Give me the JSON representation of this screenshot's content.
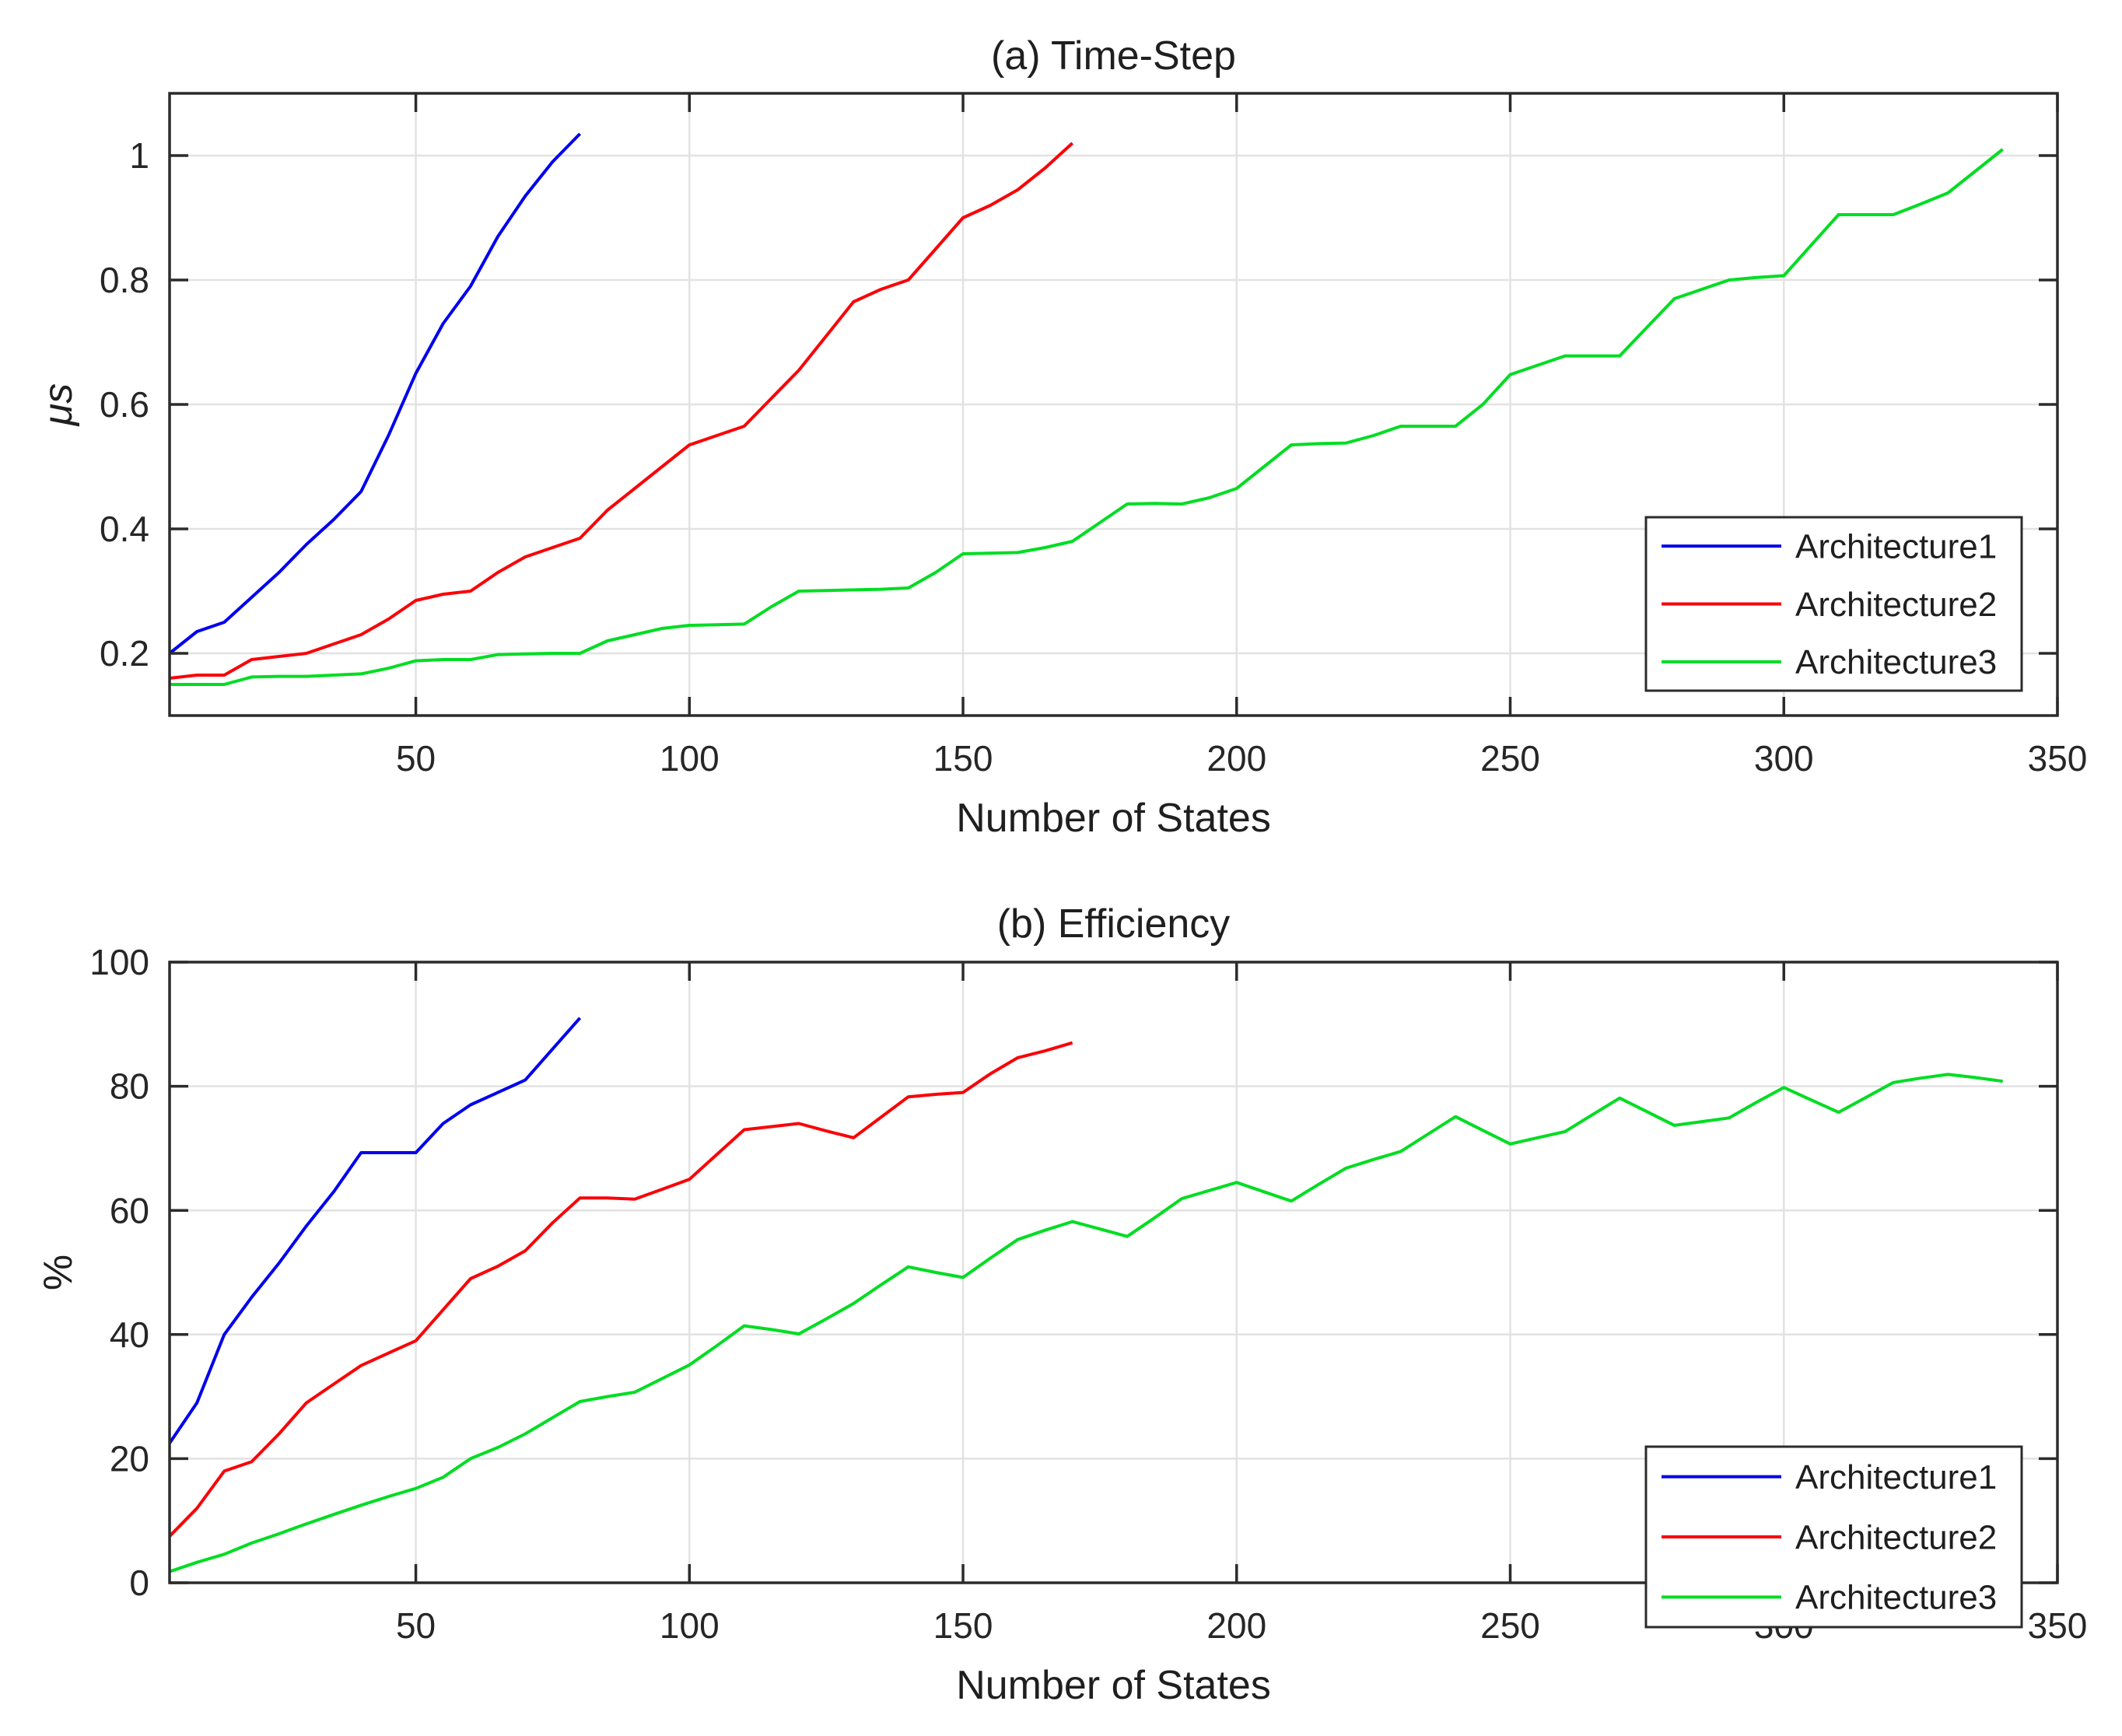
{
  "figure": {
    "background": "#ffffff",
    "text_color": "#1f1f1f",
    "axis_color": "#2b2b2b",
    "grid_color": "#e2e2e2",
    "series_colors": {
      "blue": "#0000ee",
      "red": "#fb0207",
      "green": "#00dd22"
    }
  },
  "chart_data": [
    {
      "type": "line",
      "title": "(a) Time-Step",
      "xlabel": "Number of States",
      "ylabel": "μs",
      "xlim": [
        5,
        350
      ],
      "ylim": [
        0.1,
        1.1
      ],
      "grid": true,
      "x_ticks": [
        50,
        100,
        150,
        200,
        250,
        300,
        350
      ],
      "x_tick_labels": [
        "50",
        "100",
        "150",
        "200",
        "250",
        "300",
        "350"
      ],
      "y_ticks": [
        0.2,
        0.4,
        0.6,
        0.8,
        1
      ],
      "y_tick_labels": [
        "0.2",
        "0.4",
        "0.6",
        "0.8",
        "1"
      ],
      "legend_position": "right-middle",
      "series": [
        {
          "name": "Architecture1",
          "color": "#0000ee",
          "x": [
            5,
            10,
            15,
            20,
            25,
            30,
            35,
            40,
            45,
            50,
            55,
            60,
            65,
            70,
            75,
            80
          ],
          "y": [
            0.2,
            0.235,
            0.25,
            0.29,
            0.33,
            0.375,
            0.415,
            0.46,
            0.55,
            0.65,
            0.73,
            0.79,
            0.87,
            0.935,
            0.99,
            1.035
          ]
        },
        {
          "name": "Architecture2",
          "color": "#fb0207",
          "x": [
            5,
            10,
            15,
            20,
            25,
            30,
            35,
            40,
            45,
            50,
            55,
            60,
            65,
            70,
            75,
            80,
            85,
            90,
            95,
            100,
            105,
            110,
            115,
            120,
            125,
            130,
            135,
            140,
            145,
            150,
            155,
            160,
            165,
            170
          ],
          "y": [
            0.16,
            0.165,
            0.165,
            0.19,
            0.195,
            0.2,
            0.215,
            0.23,
            0.255,
            0.285,
            0.295,
            0.3,
            0.33,
            0.355,
            0.37,
            0.385,
            0.43,
            0.465,
            0.5,
            0.535,
            0.55,
            0.565,
            0.61,
            0.655,
            0.71,
            0.765,
            0.785,
            0.8,
            0.85,
            0.9,
            0.92,
            0.945,
            0.98,
            1.02
          ]
        },
        {
          "name": "Architecture3",
          "color": "#00dd22",
          "x": [
            5,
            10,
            15,
            20,
            25,
            30,
            35,
            40,
            45,
            50,
            55,
            60,
            65,
            70,
            75,
            80,
            85,
            90,
            95,
            100,
            105,
            110,
            115,
            120,
            125,
            130,
            135,
            140,
            145,
            150,
            155,
            160,
            165,
            170,
            175,
            180,
            185,
            190,
            195,
            200,
            205,
            210,
            215,
            220,
            225,
            230,
            235,
            240,
            245,
            250,
            255,
            260,
            265,
            270,
            275,
            280,
            285,
            290,
            295,
            300,
            305,
            310,
            315,
            320,
            325,
            330,
            335,
            340
          ],
          "y": [
            0.15,
            0.15,
            0.15,
            0.162,
            0.163,
            0.163,
            0.165,
            0.167,
            0.176,
            0.188,
            0.19,
            0.19,
            0.198,
            0.199,
            0.2,
            0.2,
            0.22,
            0.23,
            0.24,
            0.245,
            0.246,
            0.247,
            0.275,
            0.3,
            0.301,
            0.302,
            0.303,
            0.305,
            0.33,
            0.36,
            0.361,
            0.362,
            0.37,
            0.38,
            0.41,
            0.44,
            0.441,
            0.44,
            0.45,
            0.465,
            0.5,
            0.535,
            0.537,
            0.538,
            0.55,
            0.565,
            0.565,
            0.565,
            0.6,
            0.648,
            0.663,
            0.678,
            0.678,
            0.678,
            0.724,
            0.77,
            0.785,
            0.8,
            0.804,
            0.807,
            0.856,
            0.905,
            0.905,
            0.905,
            0.922,
            0.94,
            0.975,
            1.01
          ]
        }
      ]
    },
    {
      "type": "line",
      "title": "(b) Efficiency",
      "xlabel": "Number of States",
      "ylabel": "%",
      "xlim": [
        5,
        350
      ],
      "ylim": [
        0,
        100
      ],
      "grid": true,
      "x_ticks": [
        50,
        100,
        150,
        200,
        250,
        300,
        350
      ],
      "x_tick_labels": [
        "50",
        "100",
        "150",
        "200",
        "250",
        "300",
        "350"
      ],
      "y_ticks": [
        0,
        20,
        40,
        60,
        80,
        100
      ],
      "y_tick_labels": [
        "0",
        "20",
        "40",
        "60",
        "80",
        "100"
      ],
      "legend_position": "right-middle",
      "series": [
        {
          "name": "Architecture1",
          "color": "#0000ee",
          "x": [
            5,
            10,
            15,
            20,
            25,
            30,
            35,
            40,
            45,
            50,
            55,
            60,
            65,
            70,
            75,
            80
          ],
          "y": [
            22.5,
            29,
            40,
            46,
            51.5,
            57.5,
            63,
            69.3,
            69.3,
            69.3,
            74,
            77,
            79,
            81,
            86,
            91
          ]
        },
        {
          "name": "Architecture2",
          "color": "#fb0207",
          "x": [
            5,
            10,
            15,
            20,
            25,
            30,
            35,
            40,
            45,
            50,
            55,
            60,
            65,
            70,
            75,
            80,
            85,
            90,
            95,
            100,
            105,
            110,
            115,
            120,
            125,
            130,
            135,
            140,
            145,
            150,
            155,
            160,
            165,
            170
          ],
          "y": [
            7.5,
            12,
            18,
            19.5,
            24,
            29,
            32,
            35,
            37,
            39,
            44,
            49,
            51,
            53.5,
            58,
            62,
            62,
            61.8,
            63.4,
            65,
            69,
            73,
            73.5,
            74,
            72.8,
            71.7,
            75,
            78.3,
            78.7,
            79,
            82,
            84.6,
            85.7,
            87
          ]
        },
        {
          "name": "Architecture3",
          "color": "#00dd22",
          "x": [
            5,
            10,
            15,
            20,
            25,
            30,
            35,
            40,
            45,
            50,
            55,
            60,
            65,
            70,
            75,
            80,
            85,
            90,
            95,
            100,
            105,
            110,
            115,
            120,
            125,
            130,
            135,
            140,
            145,
            150,
            155,
            160,
            165,
            170,
            175,
            180,
            185,
            190,
            195,
            200,
            205,
            210,
            215,
            220,
            225,
            230,
            235,
            240,
            245,
            250,
            255,
            260,
            265,
            270,
            275,
            280,
            285,
            290,
            295,
            300,
            305,
            310,
            315,
            320,
            325,
            330,
            335,
            340
          ],
          "y": [
            1.8,
            3.3,
            4.6,
            6.4,
            7.9,
            9.5,
            11,
            12.5,
            13.9,
            15.2,
            17,
            20,
            21.8,
            24,
            26.6,
            29.2,
            30,
            30.7,
            32.9,
            35.1,
            38.2,
            41.4,
            40.8,
            40.1,
            42.5,
            45,
            48,
            50.9,
            50,
            49.2,
            52.3,
            55.3,
            56.8,
            58.2,
            57,
            55.8,
            58.8,
            61.9,
            63.2,
            64.5,
            63,
            61.5,
            64.2,
            66.8,
            68.2,
            69.5,
            72.3,
            75.1,
            72.9,
            70.7,
            71.7,
            72.7,
            75.4,
            78.1,
            75.9,
            73.7,
            74.3,
            74.9,
            77.4,
            79.8,
            77.8,
            75.8,
            78.2,
            80.6,
            81.3,
            81.9,
            81.4,
            80.8
          ]
        }
      ]
    }
  ]
}
